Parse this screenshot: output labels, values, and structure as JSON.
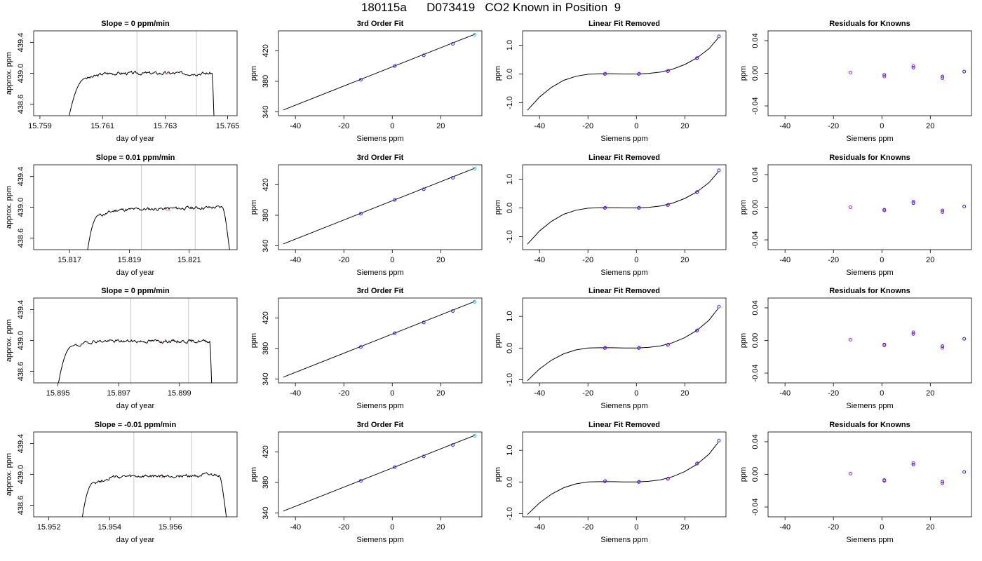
{
  "title": "180115a      D073419   CO2 Known in Position  9",
  "chart_data": [
    {
      "panel": "timeseries",
      "type": "line",
      "title": "Slope =  0  ppm/min",
      "xlabel": "day of year",
      "ylabel": "approx. ppm",
      "xlim": [
        15.7588,
        15.7653
      ],
      "ylim": [
        438.45,
        439.55
      ],
      "xticks": [
        "15.759",
        "15.761",
        "15.763",
        "15.765"
      ],
      "yticks": [
        "438.6",
        "439.0",
        "439.4"
      ],
      "rise_start": 15.7598,
      "rise_end": 15.7605,
      "fall_start": 15.7645,
      "fall_end": 15.7646,
      "plateau": 439.0,
      "plateau_tilt": 0.0,
      "seed": 3,
      "vlines": [
        15.7621,
        15.764
      ]
    },
    {
      "panel": "fit",
      "type": "line",
      "title": "3rd Order Fit",
      "xlabel": "Siemens ppm",
      "ylabel": "ppm",
      "xlim": [
        -47,
        37
      ],
      "ylim": [
        335,
        446
      ],
      "xticks": [
        "-40",
        "-20",
        "0",
        "20"
      ],
      "yticks": [
        "340",
        "380",
        "420"
      ],
      "line": {
        "x": [
          -45,
          34
        ],
        "y": [
          342.5,
          441.5
        ]
      },
      "points": {
        "x": [
          -13,
          1,
          13,
          25,
          34
        ],
        "y": [
          382,
          400,
          414,
          429,
          441
        ]
      }
    },
    {
      "panel": "linfit",
      "type": "line",
      "title": "Linear Fit Removed",
      "xlabel": "Siemens ppm",
      "ylabel": "ppm",
      "xlim": [
        -47,
        37
      ],
      "ylim": [
        -1.45,
        1.5
      ],
      "xticks": [
        "-40",
        "-20",
        "0",
        "20"
      ],
      "yticks": [
        "-1.0",
        "0.0",
        "1.0"
      ],
      "curve": {
        "x": [
          -45,
          -40,
          -35,
          -30,
          -25,
          -20,
          -15,
          -10,
          -5,
          0,
          5,
          10,
          15,
          20,
          25,
          30,
          34
        ],
        "y": [
          -1.26,
          -0.8,
          -0.46,
          -0.22,
          -0.08,
          -0.01,
          0.01,
          0.01,
          0.0,
          0.0,
          0.02,
          0.07,
          0.17,
          0.33,
          0.56,
          0.88,
          1.27
        ]
      },
      "points": {
        "x": [
          -13,
          1,
          13,
          25,
          34
        ],
        "y": [
          0.0,
          0.0,
          0.1,
          0.55,
          1.3
        ]
      }
    },
    {
      "panel": "resid",
      "type": "scatter",
      "title": "Residuals for Knowns",
      "xlabel": "Siemens ppm",
      "ylabel": "ppm",
      "xlim": [
        -47,
        37
      ],
      "ylim": [
        -0.052,
        0.052
      ],
      "xticks": [
        "-40",
        "-20",
        "0",
        "20"
      ],
      "yticks": [
        "-0.04",
        "0.00",
        "0.04"
      ],
      "points": {
        "x": [
          -13,
          1,
          1,
          13,
          13,
          25,
          25,
          34
        ],
        "y": [
          0.001,
          -0.002,
          -0.004,
          0.007,
          0.009,
          -0.004,
          -0.006,
          0.002
        ]
      }
    },
    {
      "panel": "timeseries",
      "type": "line",
      "title": "Slope =  0.01  ppm/min",
      "xlabel": "day of year",
      "ylabel": "approx. ppm",
      "xlim": [
        15.8158,
        15.8226
      ],
      "ylim": [
        438.45,
        439.55
      ],
      "xticks": [
        "15.817",
        "15.819",
        "15.821"
      ],
      "yticks": [
        "438.6",
        "439.0",
        "439.4"
      ],
      "rise_start": 15.8175,
      "rise_end": 15.818,
      "fall_start": 15.8221,
      "fall_end": 15.8225,
      "plateau": 438.96,
      "plateau_tilt": 0.04,
      "seed": 11,
      "vlines": [
        15.8194,
        15.8212
      ]
    },
    {
      "panel": "fit",
      "type": "line",
      "title": "3rd Order Fit",
      "xlabel": "Siemens ppm",
      "ylabel": "ppm",
      "xlim": [
        -47,
        37
      ],
      "ylim": [
        335,
        446
      ],
      "xticks": [
        "-40",
        "-20",
        "0",
        "20"
      ],
      "yticks": [
        "340",
        "380",
        "420"
      ],
      "line": {
        "x": [
          -45,
          34
        ],
        "y": [
          342.5,
          441.5
        ]
      },
      "points": {
        "x": [
          -13,
          1,
          13,
          25,
          34
        ],
        "y": [
          382,
          400,
          414,
          429,
          441
        ]
      }
    },
    {
      "panel": "linfit",
      "type": "line",
      "title": "Linear Fit Removed",
      "xlabel": "Siemens ppm",
      "ylabel": "ppm",
      "xlim": [
        -47,
        37
      ],
      "ylim": [
        -1.45,
        1.5
      ],
      "xticks": [
        "-40",
        "-20",
        "0",
        "20"
      ],
      "yticks": [
        "-1.0",
        "0.0",
        "1.0"
      ],
      "curve": {
        "x": [
          -45,
          -40,
          -35,
          -30,
          -25,
          -20,
          -15,
          -10,
          -5,
          0,
          5,
          10,
          15,
          20,
          25,
          30,
          34
        ],
        "y": [
          -1.26,
          -0.8,
          -0.46,
          -0.22,
          -0.08,
          -0.01,
          0.01,
          0.01,
          0.0,
          0.0,
          0.02,
          0.07,
          0.17,
          0.33,
          0.56,
          0.88,
          1.27
        ]
      },
      "points": {
        "x": [
          -13,
          1,
          13,
          25,
          34
        ],
        "y": [
          0.0,
          0.0,
          0.1,
          0.55,
          1.3
        ]
      }
    },
    {
      "panel": "resid",
      "type": "scatter",
      "title": "Residuals for Knowns",
      "xlabel": "Siemens ppm",
      "ylabel": "ppm",
      "xlim": [
        -47,
        37
      ],
      "ylim": [
        -0.052,
        0.052
      ],
      "xticks": [
        "-40",
        "-20",
        "0",
        "20"
      ],
      "yticks": [
        "-0.04",
        "0.00",
        "0.04"
      ],
      "points": {
        "x": [
          -13,
          1,
          1,
          13,
          13,
          25,
          25,
          34
        ],
        "y": [
          0.0,
          -0.003,
          -0.004,
          0.005,
          0.007,
          -0.004,
          -0.006,
          0.001
        ]
      }
    },
    {
      "panel": "timeseries",
      "type": "line",
      "title": "Slope =  0  ppm/min",
      "xlabel": "day of year",
      "ylabel": "approx. ppm",
      "xlim": [
        15.8942,
        15.9009
      ],
      "ylim": [
        438.45,
        439.55
      ],
      "xticks": [
        "15.895",
        "15.897",
        "15.899"
      ],
      "yticks": [
        "438.6",
        "439.0",
        "439.4"
      ],
      "rise_start": 15.8949,
      "rise_end": 15.8955,
      "fall_start": 15.9,
      "fall_end": 15.9001,
      "plateau": 438.99,
      "plateau_tilt": 0.0,
      "seed": 19,
      "vlines": [
        15.8974,
        15.8993
      ]
    },
    {
      "panel": "fit",
      "type": "line",
      "title": "3rd Order Fit",
      "xlabel": "Siemens ppm",
      "ylabel": "ppm",
      "xlim": [
        -47,
        37
      ],
      "ylim": [
        335,
        446
      ],
      "xticks": [
        "-40",
        "-20",
        "0",
        "20"
      ],
      "yticks": [
        "340",
        "380",
        "420"
      ],
      "line": {
        "x": [
          -45,
          34
        ],
        "y": [
          342.5,
          441.5
        ]
      },
      "points": {
        "x": [
          -13,
          1,
          13,
          25,
          34
        ],
        "y": [
          382,
          400,
          414,
          429,
          441
        ]
      }
    },
    {
      "panel": "linfit",
      "type": "line",
      "title": "Linear Fit Removed",
      "xlabel": "Siemens ppm",
      "ylabel": "ppm",
      "xlim": [
        -47,
        37
      ],
      "ylim": [
        -1.1,
        1.58
      ],
      "xticks": [
        "-40",
        "-20",
        "0",
        "20"
      ],
      "yticks": [
        "-1.0",
        "0.0",
        "1.0"
      ],
      "curve": {
        "x": [
          -45,
          -40,
          -35,
          -30,
          -25,
          -20,
          -15,
          -10,
          -5,
          0,
          5,
          10,
          15,
          20,
          25,
          30,
          34
        ],
        "y": [
          -1.03,
          -0.66,
          -0.38,
          -0.18,
          -0.06,
          0.0,
          0.01,
          0.01,
          0.0,
          0.0,
          0.02,
          0.07,
          0.17,
          0.33,
          0.56,
          0.88,
          1.27
        ]
      },
      "points": {
        "x": [
          -13,
          1,
          13,
          25,
          34
        ],
        "y": [
          0.0,
          0.0,
          0.1,
          0.55,
          1.3
        ]
      }
    },
    {
      "panel": "resid",
      "type": "scatter",
      "title": "Residuals for Knowns",
      "xlabel": "Siemens ppm",
      "ylabel": "ppm",
      "xlim": [
        -47,
        37
      ],
      "ylim": [
        -0.052,
        0.052
      ],
      "xticks": [
        "-40",
        "-20",
        "0",
        "20"
      ],
      "yticks": [
        "-0.04",
        "0.00",
        "0.04"
      ],
      "points": {
        "x": [
          -13,
          1,
          1,
          13,
          13,
          25,
          25,
          34
        ],
        "y": [
          0.001,
          -0.005,
          -0.006,
          0.008,
          0.01,
          -0.007,
          -0.009,
          0.002
        ]
      }
    },
    {
      "panel": "timeseries",
      "type": "line",
      "title": "Slope =  -0.01  ppm/min",
      "xlabel": "day of year",
      "ylabel": "approx. ppm",
      "xlim": [
        15.9515,
        15.9582
      ],
      "ylim": [
        438.45,
        439.55
      ],
      "xticks": [
        "15.952",
        "15.954",
        "15.956"
      ],
      "yticks": [
        "438.6",
        "439.0",
        "439.4"
      ],
      "rise_start": 15.953,
      "rise_end": 15.9535,
      "fall_start": 15.9576,
      "fall_end": 15.958,
      "plateau": 438.96,
      "plateau_tilt": 0.03,
      "seed": 27,
      "vlines": [
        15.9548,
        15.9567
      ]
    },
    {
      "panel": "fit",
      "type": "line",
      "title": "3rd Order Fit",
      "xlabel": "Siemens ppm",
      "ylabel": "ppm",
      "xlim": [
        -47,
        37
      ],
      "ylim": [
        335,
        446
      ],
      "xticks": [
        "-40",
        "-20",
        "0",
        "20"
      ],
      "yticks": [
        "340",
        "380",
        "420"
      ],
      "line": {
        "x": [
          -45,
          34
        ],
        "y": [
          342.5,
          441.5
        ]
      },
      "points": {
        "x": [
          -13,
          1,
          13,
          25,
          34
        ],
        "y": [
          382,
          400,
          414,
          429,
          441
        ]
      }
    },
    {
      "panel": "linfit",
      "type": "line",
      "title": "Linear Fit Removed",
      "xlabel": "Siemens ppm",
      "ylabel": "ppm",
      "xlim": [
        -47,
        37
      ],
      "ylim": [
        -1.1,
        1.58
      ],
      "xticks": [
        "-40",
        "-20",
        "0",
        "20"
      ],
      "yticks": [
        "-1.0",
        "0.0",
        "1.0"
      ],
      "curve": {
        "x": [
          -45,
          -40,
          -35,
          -30,
          -25,
          -20,
          -15,
          -10,
          -5,
          0,
          5,
          10,
          15,
          20,
          25,
          30,
          34
        ],
        "y": [
          -1.03,
          -0.66,
          -0.38,
          -0.18,
          -0.06,
          0.0,
          0.01,
          0.01,
          0.0,
          0.0,
          0.02,
          0.07,
          0.17,
          0.33,
          0.56,
          0.88,
          1.27
        ]
      },
      "points": {
        "x": [
          -13,
          1,
          13,
          25,
          34
        ],
        "y": [
          0.02,
          0.0,
          0.1,
          0.58,
          1.3
        ]
      }
    },
    {
      "panel": "resid",
      "type": "scatter",
      "title": "Residuals for Knowns",
      "xlabel": "Siemens ppm",
      "ylabel": "ppm",
      "xlim": [
        -47,
        37
      ],
      "ylim": [
        -0.052,
        0.052
      ],
      "xticks": [
        "-40",
        "-20",
        "0",
        "20"
      ],
      "yticks": [
        "-0.04",
        "0.00",
        "0.04"
      ],
      "points": {
        "x": [
          -13,
          1,
          1,
          13,
          13,
          25,
          25,
          34
        ],
        "y": [
          0.001,
          -0.007,
          -0.008,
          0.012,
          0.014,
          -0.009,
          -0.011,
          0.003
        ]
      }
    }
  ],
  "colors": {
    "line": "#000000",
    "point_blue": "#2020ff",
    "point_purple": "#a020f0",
    "point_cyan": "#30b0ff",
    "vline": "#c8c8c8",
    "mark_red": "#ff6060"
  }
}
